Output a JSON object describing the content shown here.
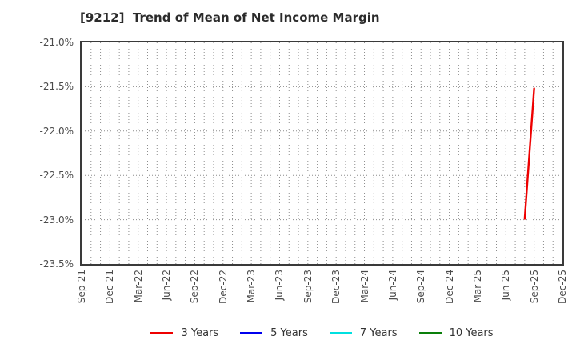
{
  "title": "[9212]  Trend of Mean of Net Income Margin",
  "chart_data": {
    "type": "line",
    "title": "[9212]  Trend of Mean of Net Income Margin",
    "x_axis": {
      "start_month": "Sep-21",
      "end_month": "Dec-25",
      "tick_labels": [
        "Sep-21",
        "Dec-21",
        "Mar-22",
        "Jun-22",
        "Sep-22",
        "Dec-22",
        "Mar-23",
        "Jun-23",
        "Sep-23",
        "Dec-23",
        "Mar-24",
        "Jun-24",
        "Sep-24",
        "Dec-24",
        "Mar-25",
        "Jun-25",
        "Sep-25",
        "Dec-25"
      ]
    },
    "y_axis": {
      "ylim": [
        -23.5,
        -21.0
      ],
      "tick_values": [
        -21.0,
        -21.5,
        -22.0,
        -22.5,
        -23.0,
        -23.5
      ],
      "tick_labels": [
        "-21.0%",
        "-21.5%",
        "-22.0%",
        "-22.5%",
        "-23.0%",
        "-23.5%"
      ],
      "unit": "%"
    },
    "grid": "dotted",
    "legend_position": "bottom",
    "series": [
      {
        "name": "3 Years",
        "color": "#ee0000",
        "points": [
          {
            "x": "Aug-25",
            "y": -22.99
          },
          {
            "x": "Sep-25",
            "y": -21.52
          }
        ]
      },
      {
        "name": "5 Years",
        "color": "#0000ee",
        "points": []
      },
      {
        "name": "7 Years",
        "color": "#00e0e0",
        "points": []
      },
      {
        "name": "10 Years",
        "color": "#0a7f0a",
        "points": []
      }
    ],
    "colors": {
      "grid": "#8c8c8c",
      "spine": "#3a3a3a",
      "tick_text": "#4a4a4a",
      "title_text": "#2b2b2b"
    }
  }
}
